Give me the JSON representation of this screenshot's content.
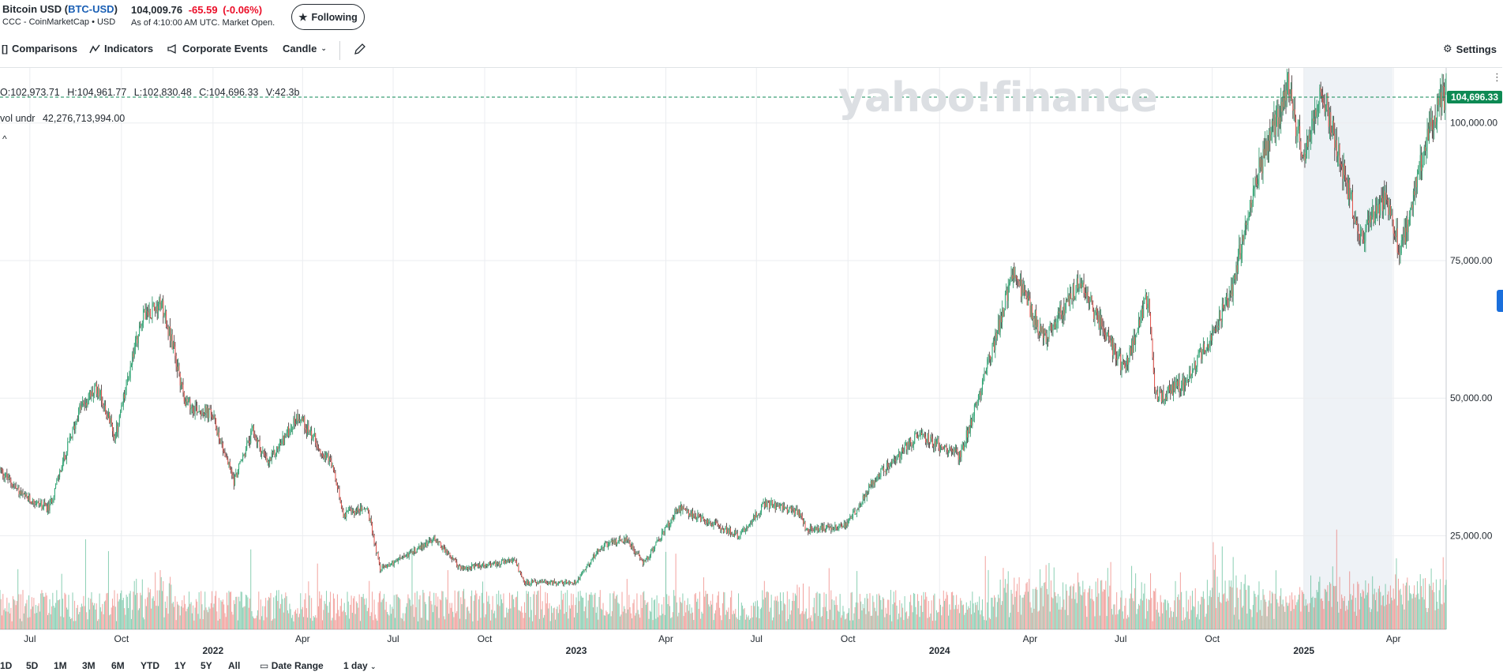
{
  "quote": {
    "name": "Bitcoin USD",
    "symbol": "BTC-USD",
    "exchange": "CCC - CoinMarketCap • USD",
    "price": "104,009.76",
    "change": "-65.59",
    "change_pct": "(-0.06%)",
    "as_of": "As of 4:10:00 AM UTC. Market Open.",
    "follow_label": "Following"
  },
  "toolbar": {
    "comparisons": "Comparisons",
    "indicators": "Indicators",
    "corporate_events": "Corporate Events",
    "chart_type": "Candle",
    "settings": "Settings"
  },
  "legend": {
    "open": "O:102,973.71",
    "high": "H:104,961.77",
    "low": "L:102,830.48",
    "close": "C:104,696.33",
    "volume": "V:42.3b",
    "vol_label": "vol undr",
    "vol_value": "42,276,713,994.00",
    "collapse": "^"
  },
  "watermark": "yahoo!finance",
  "range_bar": {
    "items": [
      "1D",
      "5D",
      "1M",
      "3M",
      "6M",
      "YTD",
      "1Y",
      "5Y",
      "All"
    ],
    "date_range": "Date Range",
    "interval": "1 day"
  },
  "colors": {
    "up": "#2aa774",
    "down": "#e8554e",
    "last_price_tag": "#0e8a54",
    "highlight_band": "#eef2f6"
  },
  "chart_data": {
    "type": "candlestick",
    "title": "",
    "xlabel": "",
    "ylabel": "",
    "y_axis_side": "right",
    "ylim": [
      8000,
      110000
    ],
    "y_ticks": [
      "25,000.00",
      "50,000.00",
      "75,000.00",
      "100,000.00"
    ],
    "y_tick_values": [
      25000,
      50000,
      75000,
      100000
    ],
    "last_price": 104696.33,
    "last_price_label": "104,696.33",
    "x_start": "2021-06-01",
    "x_end": "2025-05-24",
    "x_ticks": [
      {
        "label": "Jul",
        "date": "2021-07-01"
      },
      {
        "label": "Oct",
        "date": "2021-10-01"
      },
      {
        "label": "2022",
        "date": "2022-01-01"
      },
      {
        "label": "Apr",
        "date": "2022-04-01"
      },
      {
        "label": "Jul",
        "date": "2022-07-01"
      },
      {
        "label": "Oct",
        "date": "2022-10-01"
      },
      {
        "label": "2023",
        "date": "2023-01-01"
      },
      {
        "label": "Apr",
        "date": "2023-04-01"
      },
      {
        "label": "Jul",
        "date": "2023-07-01"
      },
      {
        "label": "Oct",
        "date": "2023-10-01"
      },
      {
        "label": "2024",
        "date": "2024-01-01"
      },
      {
        "label": "Apr",
        "date": "2024-04-01"
      },
      {
        "label": "Jul",
        "date": "2024-07-01"
      },
      {
        "label": "Oct",
        "date": "2024-10-01"
      },
      {
        "label": "2025",
        "date": "2025-01-01"
      },
      {
        "label": "Apr",
        "date": "2025-04-01"
      }
    ],
    "highlight_range": [
      "2025-01-01",
      "2025-03-31"
    ],
    "volume_overlay": true,
    "price_path": [
      {
        "date": "2021-06-01",
        "price": 37000
      },
      {
        "date": "2021-06-25",
        "price": 32000
      },
      {
        "date": "2021-07-20",
        "price": 30000
      },
      {
        "date": "2021-08-20",
        "price": 48000
      },
      {
        "date": "2021-09-07",
        "price": 52000
      },
      {
        "date": "2021-09-25",
        "price": 43000
      },
      {
        "date": "2021-10-20",
        "price": 64000
      },
      {
        "date": "2021-11-10",
        "price": 68000
      },
      {
        "date": "2021-12-05",
        "price": 49000
      },
      {
        "date": "2021-12-31",
        "price": 47000
      },
      {
        "date": "2022-01-22",
        "price": 35000
      },
      {
        "date": "2022-02-10",
        "price": 44000
      },
      {
        "date": "2022-02-25",
        "price": 38000
      },
      {
        "date": "2022-03-28",
        "price": 47000
      },
      {
        "date": "2022-04-30",
        "price": 38000
      },
      {
        "date": "2022-05-12",
        "price": 29000
      },
      {
        "date": "2022-06-05",
        "price": 30000
      },
      {
        "date": "2022-06-18",
        "price": 19000
      },
      {
        "date": "2022-07-10",
        "price": 21000
      },
      {
        "date": "2022-08-12",
        "price": 24500
      },
      {
        "date": "2022-09-07",
        "price": 19000
      },
      {
        "date": "2022-10-31",
        "price": 20500
      },
      {
        "date": "2022-11-10",
        "price": 16500
      },
      {
        "date": "2022-12-31",
        "price": 16500
      },
      {
        "date": "2023-01-25",
        "price": 23000
      },
      {
        "date": "2023-02-20",
        "price": 24500
      },
      {
        "date": "2023-03-10",
        "price": 20000
      },
      {
        "date": "2023-04-14",
        "price": 30000
      },
      {
        "date": "2023-05-20",
        "price": 27000
      },
      {
        "date": "2023-06-14",
        "price": 25000
      },
      {
        "date": "2023-07-10",
        "price": 31000
      },
      {
        "date": "2023-08-15",
        "price": 29000
      },
      {
        "date": "2023-08-20",
        "price": 26000
      },
      {
        "date": "2023-09-30",
        "price": 27000
      },
      {
        "date": "2023-10-25",
        "price": 34500
      },
      {
        "date": "2023-12-10",
        "price": 43500
      },
      {
        "date": "2024-01-22",
        "price": 39500
      },
      {
        "date": "2024-02-28",
        "price": 62000
      },
      {
        "date": "2024-03-14",
        "price": 73000
      },
      {
        "date": "2024-04-15",
        "price": 61000
      },
      {
        "date": "2024-05-21",
        "price": 71000
      },
      {
        "date": "2024-07-05",
        "price": 55000
      },
      {
        "date": "2024-07-29",
        "price": 69000
      },
      {
        "date": "2024-08-05",
        "price": 50000
      },
      {
        "date": "2024-09-06",
        "price": 53000
      },
      {
        "date": "2024-10-20",
        "price": 69000
      },
      {
        "date": "2024-11-12",
        "price": 89000
      },
      {
        "date": "2024-12-17",
        "price": 107000
      },
      {
        "date": "2024-12-31",
        "price": 93000
      },
      {
        "date": "2025-01-20",
        "price": 106000
      },
      {
        "date": "2025-02-27",
        "price": 79000
      },
      {
        "date": "2025-03-24",
        "price": 87000
      },
      {
        "date": "2025-04-08",
        "price": 76000
      },
      {
        "date": "2025-05-03",
        "price": 96000
      },
      {
        "date": "2025-05-20",
        "price": 104700
      }
    ]
  }
}
